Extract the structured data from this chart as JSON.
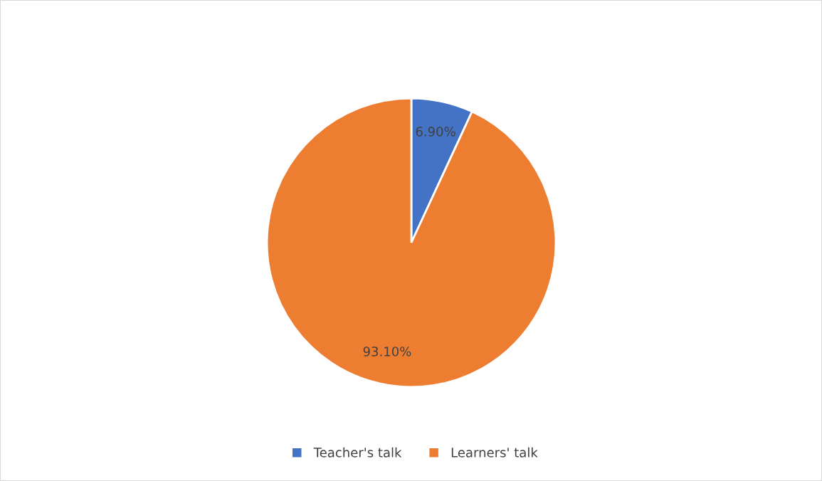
{
  "chart_data": {
    "type": "pie",
    "categories": [
      "Teacher's talk",
      "Learners' talk"
    ],
    "values": [
      6.9,
      93.1
    ],
    "colors": [
      "#4472c4",
      "#ed7d31"
    ],
    "value_labels": [
      "6.90%",
      "93.10%"
    ],
    "legend": "bottom"
  }
}
